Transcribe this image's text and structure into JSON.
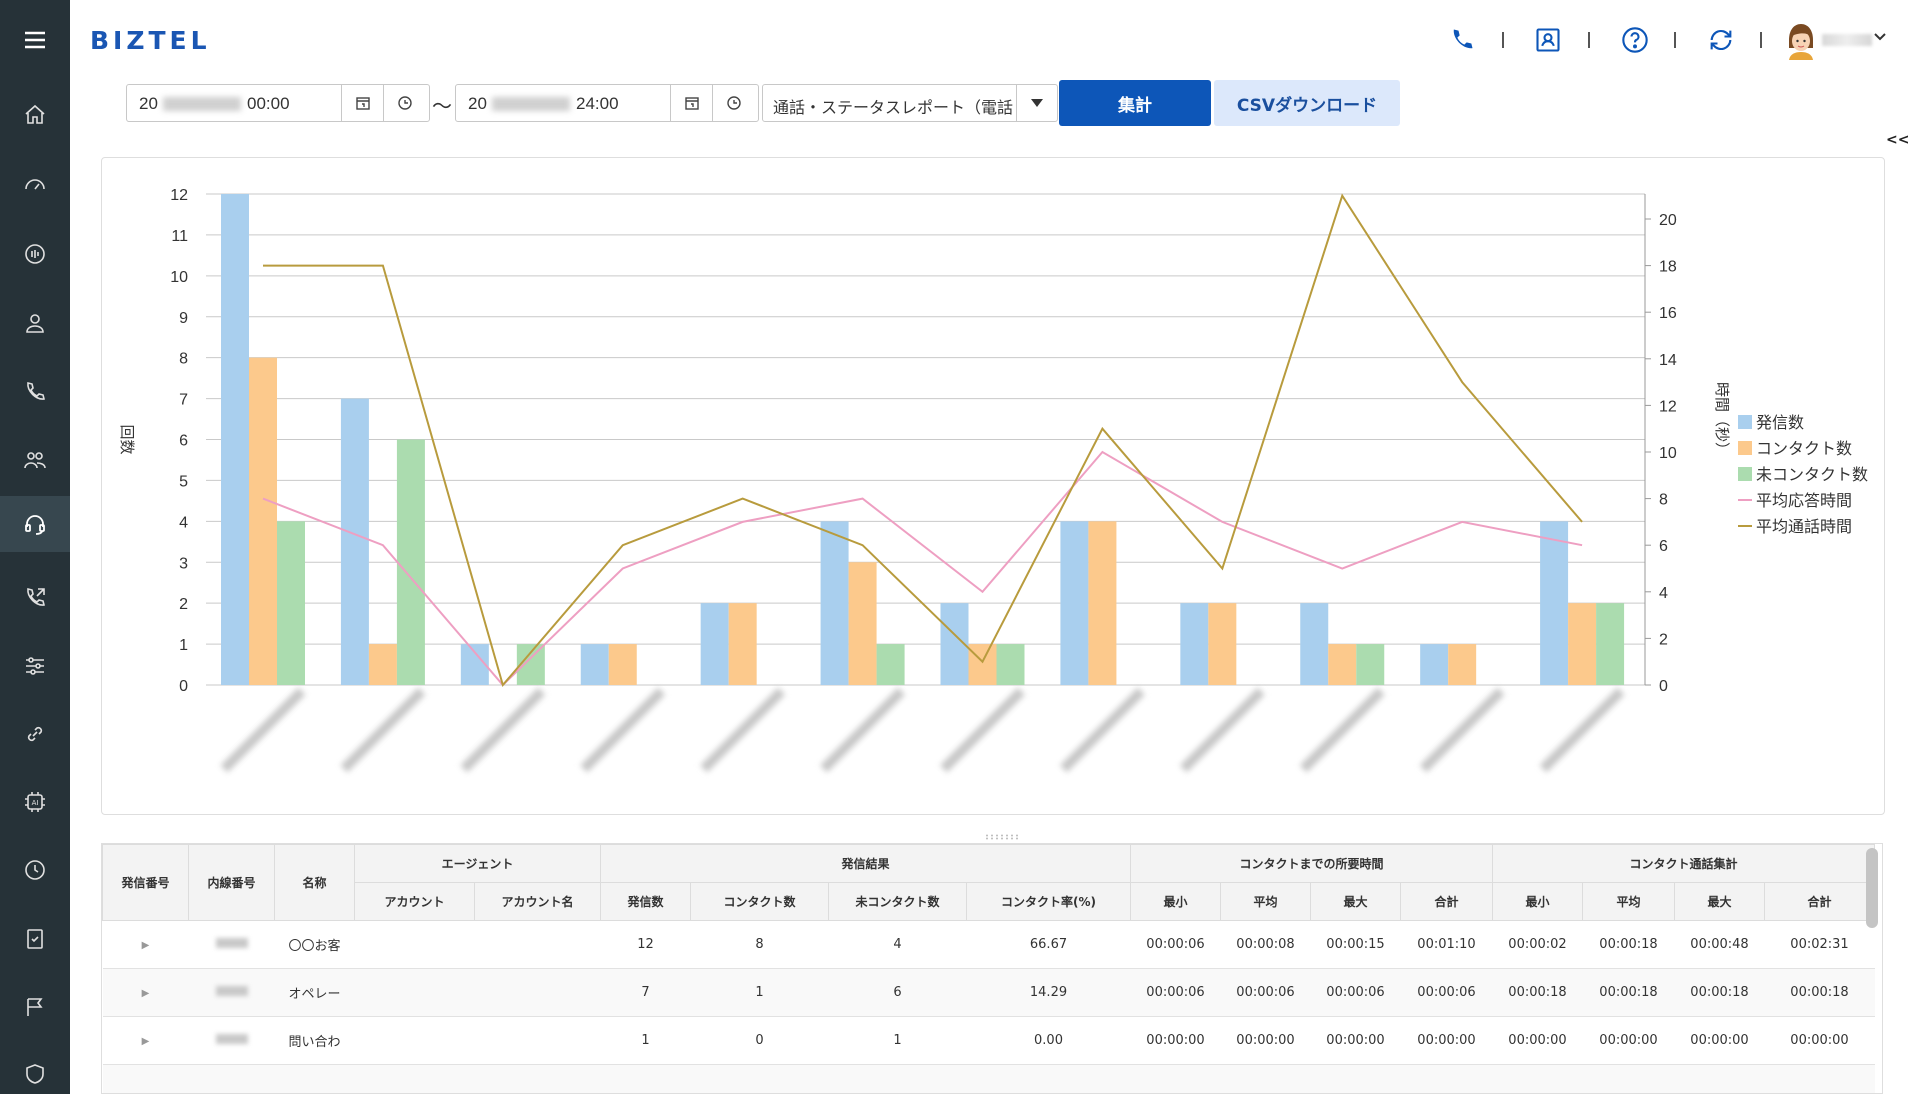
{
  "app": {
    "logo": "BIZTEL",
    "sidebar_icons": [
      "home-icon",
      "dashboard-icon",
      "monitor-icon",
      "user-icon",
      "phone-icon",
      "group-icon",
      "headset-icon",
      "callback-icon",
      "settings-sliders-icon",
      "link-icon",
      "ai-chip-icon",
      "history-icon",
      "checklist-icon",
      "flag-icon",
      "shield-icon"
    ],
    "active_sidebar_index": 6
  },
  "header": {
    "icons": [
      "phone-icon",
      "contact-card-icon",
      "help-icon",
      "sync-icon",
      "avatar"
    ]
  },
  "toolbar": {
    "start_prefix": "20",
    "start_time": "00:00",
    "end_prefix": "20",
    "end_time": "24:00",
    "tilde": "～",
    "report_select": "通話・ステータスレポート（電話",
    "aggregate_label": "集計",
    "csv_label": "CSVダウンロード",
    "collapse_label": "<<"
  },
  "chart_data": {
    "type": "bar",
    "ylabel": "回数",
    "y2label": "時間（秒）",
    "ylim": [
      0,
      12
    ],
    "y2lim": [
      0,
      21
    ],
    "yticks": [
      0,
      1,
      2,
      3,
      4,
      5,
      6,
      7,
      8,
      9,
      10,
      11,
      12
    ],
    "y2ticks": [
      0,
      2,
      4,
      6,
      8,
      10,
      12,
      14,
      16,
      18,
      20
    ],
    "categories_count": 12,
    "legend_position": "right",
    "series": [
      {
        "name": "発信数",
        "kind": "bar",
        "color": "#a9cfee",
        "values": [
          12,
          7,
          1,
          1,
          2,
          4,
          2,
          4,
          2,
          2,
          1,
          4
        ]
      },
      {
        "name": "コンタクト数",
        "kind": "bar",
        "color": "#fcc98c",
        "values": [
          8,
          1,
          0,
          1,
          2,
          3,
          1,
          4,
          2,
          1,
          1,
          2
        ]
      },
      {
        "name": "未コンタクト数",
        "kind": "bar",
        "color": "#abdcaf",
        "values": [
          4,
          6,
          1,
          0,
          0,
          1,
          1,
          0,
          0,
          1,
          0,
          2
        ]
      },
      {
        "name": "平均応答時間",
        "kind": "line",
        "axis": "y2",
        "color": "#ee9fc2",
        "values": [
          8,
          6,
          0,
          5,
          7,
          8,
          4,
          10,
          7,
          5,
          7,
          6
        ]
      },
      {
        "name": "平均通話時間",
        "kind": "line",
        "axis": "y2",
        "color": "#b89b3d",
        "values": [
          18,
          18,
          0,
          6,
          8,
          6,
          1,
          11,
          5,
          21,
          13,
          7
        ]
      }
    ]
  },
  "table": {
    "group_headers": {
      "agent": "エージェント",
      "outbound_result": "発信結果",
      "time_to_contact": "コンタクトまでの所要時間",
      "contact_call_total": "コンタクト通話集計"
    },
    "columns": {
      "caller_number": "発信番号",
      "extension": "内線番号",
      "name": "名称",
      "account": "アカウント",
      "account_name": "アカウント名",
      "calls": "発信数",
      "contacts": "コンタクト数",
      "non_contacts": "未コンタクト数",
      "contact_rate": "コンタクト率(%)",
      "min": "最小",
      "avg": "平均",
      "max": "最大",
      "total": "合計"
    },
    "rows": [
      {
        "name": "〇〇お客",
        "calls": "12",
        "contacts": "8",
        "non_contacts": "4",
        "rate": "66.67",
        "t_min": "00:00:06",
        "t_avg": "00:00:08",
        "t_max": "00:00:15",
        "t_total": "00:01:10",
        "c_min": "00:00:02",
        "c_avg": "00:00:18",
        "c_max": "00:00:48",
        "c_total": "00:02:31"
      },
      {
        "name": "オペレー",
        "calls": "7",
        "contacts": "1",
        "non_contacts": "6",
        "rate": "14.29",
        "t_min": "00:00:06",
        "t_avg": "00:00:06",
        "t_max": "00:00:06",
        "t_total": "00:00:06",
        "c_min": "00:00:18",
        "c_avg": "00:00:18",
        "c_max": "00:00:18",
        "c_total": "00:00:18"
      },
      {
        "name": "問い合わ",
        "calls": "1",
        "contacts": "0",
        "non_contacts": "1",
        "rate": "0.00",
        "t_min": "00:00:00",
        "t_avg": "00:00:00",
        "t_max": "00:00:00",
        "t_total": "00:00:00",
        "c_min": "00:00:00",
        "c_avg": "00:00:00",
        "c_max": "00:00:00",
        "c_total": "00:00:00"
      }
    ]
  }
}
